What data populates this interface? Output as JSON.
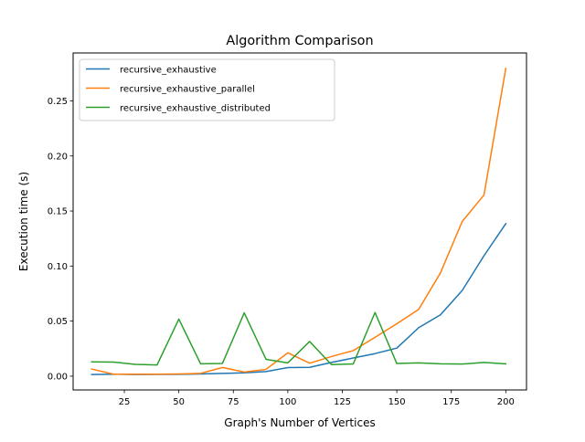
{
  "chart_data": {
    "type": "line",
    "title": "Algorithm Comparison",
    "xlabel": "Graph's Number of Vertices",
    "ylabel": "Execution time (s)",
    "xlim": [
      1.5,
      209.5
    ],
    "ylim": [
      -0.0125,
      0.2935
    ],
    "xticks": [
      25,
      50,
      75,
      100,
      125,
      150,
      175,
      200
    ],
    "yticks": [
      0.0,
      0.05,
      0.1,
      0.15,
      0.2,
      0.25
    ],
    "ytick_labels": [
      "0.00",
      "0.05",
      "0.10",
      "0.15",
      "0.20",
      "0.25"
    ],
    "legend_position": "upper-left",
    "grid": false,
    "x": [
      10,
      20,
      30,
      40,
      50,
      60,
      70,
      80,
      90,
      100,
      110,
      120,
      130,
      140,
      150,
      160,
      170,
      180,
      190,
      200
    ],
    "series": [
      {
        "name": "recursive_exhaustive",
        "color": "#1f77b4",
        "values": [
          0.0015,
          0.0018,
          0.0015,
          0.0016,
          0.0017,
          0.002,
          0.0025,
          0.003,
          0.0042,
          0.0078,
          0.008,
          0.0125,
          0.0165,
          0.0205,
          0.0255,
          0.044,
          0.0557,
          0.0778,
          0.1094,
          0.1385
        ]
      },
      {
        "name": "recursive_exhaustive_parallel",
        "color": "#ff7f0e",
        "values": [
          0.0065,
          0.0018,
          0.0018,
          0.0018,
          0.002,
          0.0025,
          0.0079,
          0.0038,
          0.0062,
          0.0212,
          0.0118,
          0.0178,
          0.0232,
          0.0353,
          0.0476,
          0.0606,
          0.0937,
          0.1405,
          0.1645,
          0.2795
        ]
      },
      {
        "name": "recursive_exhaustive_distributed",
        "color": "#2ca02c",
        "values": [
          0.013,
          0.0128,
          0.0107,
          0.0102,
          0.0518,
          0.0112,
          0.0116,
          0.0575,
          0.0153,
          0.0121,
          0.0315,
          0.0105,
          0.0111,
          0.0578,
          0.0115,
          0.0121,
          0.0112,
          0.011,
          0.0125,
          0.0112
        ]
      }
    ]
  }
}
